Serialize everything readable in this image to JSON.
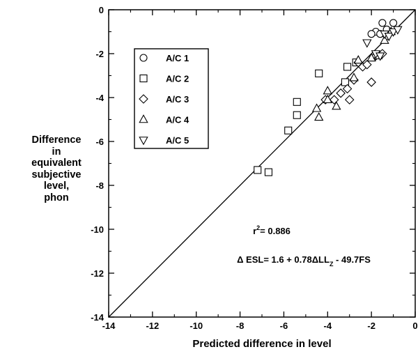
{
  "chart_data": {
    "type": "scatter",
    "title": "",
    "xlabel": "Predicted difference in level",
    "ylabel_lines": [
      "Difference",
      "in",
      "equivalent",
      "subjective",
      "level,",
      "phon"
    ],
    "xlim": [
      -14,
      0
    ],
    "ylim": [
      -14,
      0
    ],
    "xticks": [
      -14,
      -12,
      -10,
      -8,
      -6,
      -4,
      -2,
      0
    ],
    "yticks": [
      0,
      -2,
      -4,
      -6,
      -8,
      -10,
      -12,
      -14
    ],
    "grid": false,
    "legend_position": "top-left",
    "reference_line": {
      "from": [
        -14,
        -14
      ],
      "to": [
        0,
        0
      ]
    },
    "annotations": {
      "r2_prefix": "r",
      "r2_sup": "2",
      "r2_value": "= 0.886",
      "eq_main": "Δ ESL= 1.6 + 0.78ΔLL",
      "eq_sub": "Z",
      "eq_tail": " - 49.7FS"
    },
    "series": [
      {
        "name": "A/C 1",
        "marker": "circle",
        "points": [
          [
            -1.8,
            -1.0
          ],
          [
            -1.6,
            -1.1
          ],
          [
            -1.5,
            -0.6
          ],
          [
            -1.3,
            -0.9
          ],
          [
            -1.0,
            -0.6
          ],
          [
            -2.0,
            -1.1
          ]
        ]
      },
      {
        "name": "A/C 2",
        "marker": "square",
        "points": [
          [
            -7.2,
            -7.3
          ],
          [
            -6.7,
            -7.4
          ],
          [
            -5.8,
            -5.5
          ],
          [
            -5.4,
            -4.2
          ],
          [
            -5.4,
            -4.8
          ],
          [
            -4.4,
            -2.9
          ],
          [
            -3.2,
            -3.3
          ],
          [
            -3.1,
            -2.6
          ],
          [
            -2.7,
            -2.4
          ]
        ]
      },
      {
        "name": "A/C 3",
        "marker": "diamond",
        "points": [
          [
            -4.1,
            -4.1
          ],
          [
            -3.7,
            -4.1
          ],
          [
            -3.4,
            -3.8
          ],
          [
            -3.1,
            -3.6
          ],
          [
            -3.0,
            -4.1
          ],
          [
            -2.8,
            -3.2
          ],
          [
            -2.6,
            -2.4
          ],
          [
            -2.4,
            -2.6
          ],
          [
            -2.2,
            -2.5
          ],
          [
            -2.0,
            -3.3
          ],
          [
            -1.8,
            -2.1
          ],
          [
            -1.5,
            -2.0
          ],
          [
            -1.3,
            -1.2
          ]
        ]
      },
      {
        "name": "A/C 4",
        "marker": "triangle-up",
        "points": [
          [
            -4.5,
            -4.5
          ],
          [
            -4.4,
            -4.9
          ],
          [
            -4.0,
            -3.7
          ],
          [
            -4.0,
            -4.1
          ],
          [
            -3.6,
            -4.4
          ],
          [
            -2.8,
            -3.1
          ],
          [
            -2.6,
            -2.3
          ],
          [
            -2.0,
            -2.2
          ],
          [
            -1.7,
            -2.1
          ],
          [
            -1.4,
            -1.4
          ],
          [
            -1.1,
            -1.0
          ]
        ]
      },
      {
        "name": "A/C 5",
        "marker": "triangle-down",
        "points": [
          [
            -2.2,
            -1.5
          ],
          [
            -1.8,
            -2.0
          ],
          [
            -1.6,
            -2.1
          ],
          [
            -1.4,
            -1.1
          ],
          [
            -1.2,
            -1.2
          ],
          [
            -1.0,
            -1.0
          ],
          [
            -0.8,
            -0.9
          ]
        ]
      }
    ]
  }
}
